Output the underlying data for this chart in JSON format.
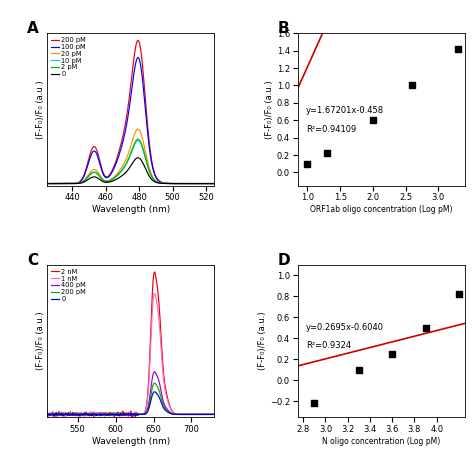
{
  "panel_A": {
    "xlabel": "Wavelength (nm)",
    "xlim": [
      425,
      525
    ],
    "xticks": [
      440,
      460,
      480,
      500,
      520
    ],
    "legend_labels": [
      "200 pM",
      "100 pM",
      "20 pM",
      "10 pM",
      "2 pM",
      "0"
    ],
    "legend_colors": [
      "#e8000d",
      "#0000ff",
      "#ff8c00",
      "#00ced1",
      "#00bb00",
      "#000000"
    ],
    "scales": [
      1.0,
      0.88,
      0.38,
      0.3,
      0.31,
      0.18
    ]
  },
  "panel_B": {
    "xlabel": "ORF1ab oligo concentration (Log pM)",
    "ylabel": "(F-F₀)/F₀ (a.u.)",
    "xlim": [
      0.85,
      3.4
    ],
    "ylim": [
      -0.15,
      1.6
    ],
    "xticks": [
      1.0,
      1.5,
      2.0,
      2.5,
      3.0
    ],
    "equation": "y=1.67201x-0.458",
    "r2": "R²=0.94109",
    "scatter_x": [
      1.0,
      1.3,
      2.0,
      2.6,
      3.3
    ],
    "scatter_y": [
      0.1,
      0.22,
      0.6,
      1.0,
      1.42
    ],
    "slope": 1.67201,
    "intercept": -0.458,
    "line_color": "#cc0000"
  },
  "panel_C": {
    "xlabel": "Wavelength (nm)",
    "xlim": [
      510,
      730
    ],
    "xticks": [
      550,
      600,
      650,
      700
    ],
    "legend_labels": [
      "2 nM",
      "1 nM",
      "400 pM",
      "200 pM",
      "0"
    ],
    "legend_colors": [
      "#e8000d",
      "#ff69b4",
      "#9400d3",
      "#00aa00",
      "#0000cc"
    ],
    "scales": [
      1.0,
      0.85,
      0.3,
      0.22,
      0.16
    ]
  },
  "panel_D": {
    "xlabel": "N oligo concentration (Log pM)",
    "ylabel": "(F-F₀)/F₀ (a.u.)",
    "xlim": [
      2.75,
      4.25
    ],
    "ylim": [
      -0.35,
      1.1
    ],
    "xticks": [
      2.8,
      3.0,
      3.2,
      3.4,
      3.6,
      3.8,
      4.0
    ],
    "equation": "y=0.2695x-0.6040",
    "r2": "R²=0.9324",
    "scatter_x": [
      2.9,
      3.3,
      3.6,
      3.9,
      4.2
    ],
    "scatter_y": [
      -0.22,
      0.1,
      0.25,
      0.5,
      0.82
    ],
    "slope": 0.2695,
    "intercept": -0.604,
    "line_color": "#cc0000"
  }
}
